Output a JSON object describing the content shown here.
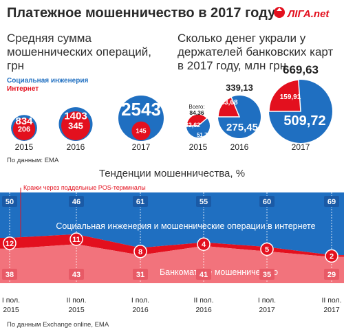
{
  "title": "Платежное мошенничество в 2017 году",
  "logo": {
    "text": "ЛIГА.net"
  },
  "colors": {
    "blue": "#1f6fc1",
    "red": "#e3101e",
    "pink": "#f2737c",
    "dark_blue": "#1a5aa6"
  },
  "left_panel": {
    "subtitle_lines": [
      "Средняя сумма",
      "мошеннических операций,",
      "грн"
    ],
    "legend": {
      "social": "Социальная инженерия",
      "internet": "Интернет"
    }
  },
  "right_panel": {
    "subtitle_lines": [
      "Сколько денег украли у",
      "держателей банковских карт",
      "в 2017 году, млн грн"
    ],
    "total_label_2015": "Всего:"
  },
  "source_1": "По данным: ЕМА",
  "trend": {
    "title": "Тенденции мошенничества, %",
    "annotation": "Кражи через поддельные POS-терминалы",
    "social_label": "Социальная инженерия и  мошеннические операции в интернете",
    "atm_label": "Банкоматное мошенничество"
  },
  "source_2": "По данным Exchange online, ЕМА",
  "chart_data": [
    {
      "type": "bubble",
      "title": "Средняя сумма мошеннических операций, грн",
      "categories": [
        "2015",
        "2016",
        "2017"
      ],
      "series": [
        {
          "name": "Социальная инженерия",
          "values": [
            834,
            1403,
            2543
          ]
        },
        {
          "name": "Интернет",
          "values": [
            206,
            345,
            145
          ]
        }
      ]
    },
    {
      "type": "pie",
      "title": "Сколько денег украли у держателей банковских карт в 2017 году, млн грн",
      "categories": [
        "2015",
        "2016",
        "2017"
      ],
      "totals": [
        "84,36",
        "339,13",
        "669,63"
      ],
      "series": [
        {
          "values": [
            "51,74",
            "275,45",
            "509,72"
          ]
        },
        {
          "values": [
            "32,62",
            "63,68",
            "159,91"
          ]
        }
      ]
    },
    {
      "type": "area",
      "title": "Тенденции мошенничества, %",
      "categories": [
        [
          "I пол.",
          "2015"
        ],
        [
          "II пол.",
          "2015"
        ],
        [
          "I пол.",
          "2016"
        ],
        [
          "II пол.",
          "2016"
        ],
        [
          "I пол.",
          "2017"
        ],
        [
          "II пол.",
          "2017"
        ]
      ],
      "series": [
        {
          "name": "Социальная инженерия и  мошеннические операции в интернете",
          "values": [
            50,
            46,
            61,
            55,
            60,
            69
          ]
        },
        {
          "name": "Кражи через поддельные POS-терминалы",
          "values": [
            12,
            11,
            8,
            4,
            5,
            2
          ]
        },
        {
          "name": "Банкоматное мошенничество",
          "values": [
            38,
            43,
            31,
            41,
            35,
            29
          ]
        }
      ]
    }
  ]
}
